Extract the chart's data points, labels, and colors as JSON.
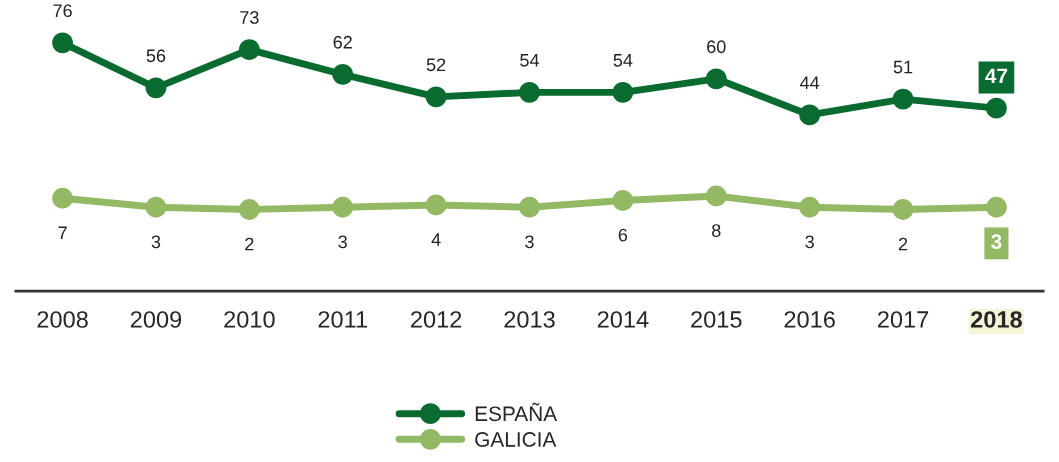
{
  "chart_data": {
    "type": "line",
    "categories": [
      "2008",
      "2009",
      "2010",
      "2011",
      "2012",
      "2013",
      "2014",
      "2015",
      "2016",
      "2017",
      "2018"
    ],
    "series": [
      {
        "name": "ESPAÑA",
        "color": "#0a6b30",
        "values": [
          76,
          56,
          73,
          62,
          52,
          54,
          54,
          60,
          44,
          51,
          47
        ]
      },
      {
        "name": "GALICIA",
        "color": "#93b964",
        "values": [
          7,
          3,
          2,
          3,
          4,
          3,
          6,
          8,
          3,
          2,
          3
        ]
      }
    ],
    "data_labels": true,
    "marker": "circle",
    "line_style": "solid",
    "grid": false,
    "legend": "bottom",
    "tick_labels": "x"
  }
}
